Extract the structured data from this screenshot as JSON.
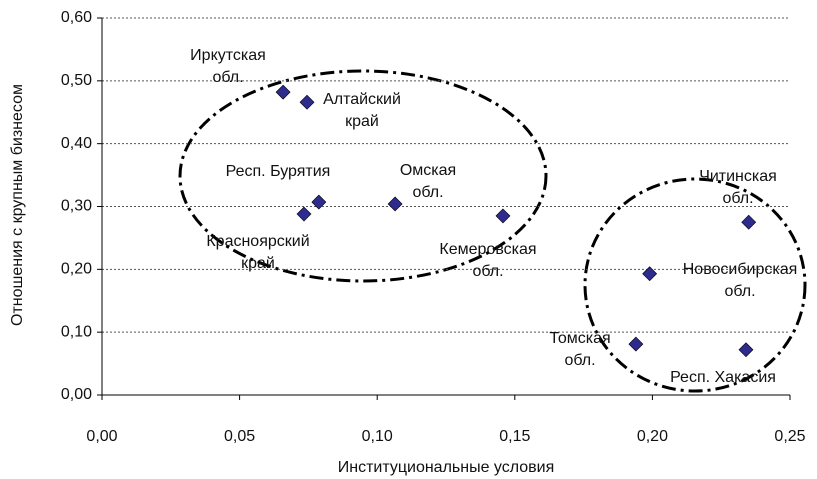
{
  "chart_data": {
    "type": "scatter",
    "xlabel": "Институциональные условия",
    "ylabel": "Отношения с крупным бизнесом",
    "xlim": [
      0,
      0.25
    ],
    "xticks": [
      {
        "value": 0,
        "label": "0,00"
      },
      {
        "value": 0.05,
        "label": "0,05"
      },
      {
        "value": 0.1,
        "label": "0,10"
      },
      {
        "value": 0.15,
        "label": "0,15"
      },
      {
        "value": 0.2,
        "label": "0,20"
      },
      {
        "value": 0.25,
        "label": "0,25"
      }
    ],
    "ylim": [
      0,
      0.6
    ],
    "yticks": [
      {
        "value": 0,
        "label": "0,00"
      },
      {
        "value": 0.1,
        "label": "0,10"
      },
      {
        "value": 0.2,
        "label": "0,20"
      },
      {
        "value": 0.3,
        "label": "0,30"
      },
      {
        "value": 0.4,
        "label": "0,40"
      },
      {
        "value": 0.5,
        "label": "0,50"
      },
      {
        "value": 0.6,
        "label": "0,60"
      }
    ],
    "grid": true,
    "series": [
      {
        "color": "#2e2b8f",
        "x": [
          0.0658,
          0.0745,
          0.0788,
          0.0734,
          0.1065,
          0.1457,
          0.235,
          0.199,
          0.194,
          0.234
        ],
        "values": [
          0.482,
          0.466,
          0.307,
          0.288,
          0.304,
          0.285,
          0.275,
          0.193,
          0.081,
          0.072
        ],
        "labels": [
          [
            "Иркутская",
            "обл."
          ],
          [
            "Алтайский",
            "край"
          ],
          [
            "Респ. Бурятия"
          ],
          [
            "Красноярский",
            "край"
          ],
          [
            "Омская",
            "обл."
          ],
          [
            "Кемеровская",
            "обл."
          ],
          [
            "Читинская",
            "обл."
          ],
          [
            "Новосибирская",
            "обл."
          ],
          [
            "Томская",
            "обл."
          ],
          [
            "Респ. Хакасия"
          ]
        ]
      }
    ]
  }
}
